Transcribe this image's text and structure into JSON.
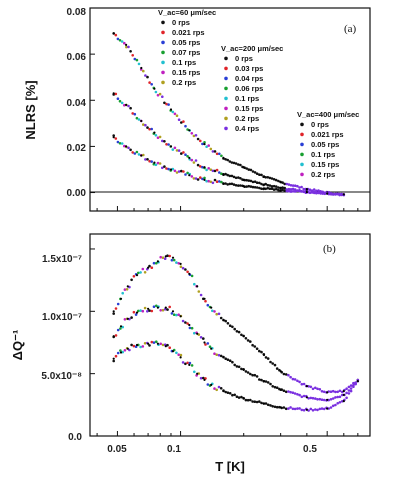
{
  "chart_data": [
    {
      "type": "scatter",
      "panel_label": "(a)",
      "ylabel": "NLRS [%]",
      "yticks": [
        "0.00",
        "0.02",
        "0.04",
        "0.06",
        "0.08"
      ],
      "ylim": [
        -0.008,
        0.08
      ],
      "xlim": [
        0.037,
        0.8
      ],
      "x_scale": "log",
      "legend_groups": [
        {
          "title": "V_ac=60 μm/sec",
          "entries": [
            "0 rps",
            "0.021 rps",
            "0.05 rps",
            "0.07 rps",
            "0.1 rps",
            "0.15 rps",
            "0.2 rps"
          ]
        },
        {
          "title": "V_ac=200 μm/sec",
          "entries": [
            "0 rps",
            "0.03 rps",
            "0.04 rps",
            "0.06 rps",
            "0.1 rps",
            "0.15 rps",
            "0.2 rps",
            "0.4 rps"
          ]
        },
        {
          "title": "V_ac=400 μm/sec",
          "entries": [
            "0 rps",
            "0.021 rps",
            "0.05 rps",
            "0.1 rps",
            "0.15 rps",
            "0.2 rps"
          ]
        }
      ],
      "colors": [
        "#111111",
        "#e0242a",
        "#2a3fd6",
        "#18a030",
        "#22c0d0",
        "#c020c0",
        "#b0a020",
        "#7a30e0"
      ],
      "series": [
        {
          "group": "V_ac=60 μm/sec",
          "x": [
            0.048,
            0.055,
            0.065,
            0.075,
            0.09,
            0.11,
            0.13,
            0.16,
            0.2,
            0.25,
            0.3,
            0.4,
            0.5,
            0.6
          ],
          "y": [
            0.069,
            0.064,
            0.054,
            0.045,
            0.036,
            0.027,
            0.021,
            0.015,
            0.011,
            0.007,
            0.0045,
            0.0015,
            0.0,
            -0.001
          ]
        },
        {
          "group": "V_ac=200 μm/sec",
          "x": [
            0.048,
            0.055,
            0.065,
            0.075,
            0.09,
            0.11,
            0.13,
            0.16,
            0.2,
            0.25,
            0.3,
            0.4,
            0.5,
            0.6
          ],
          "y": [
            0.043,
            0.038,
            0.031,
            0.026,
            0.02,
            0.015,
            0.011,
            0.008,
            0.0055,
            0.0035,
            0.002,
            0.0005,
            -0.0005,
            -0.001
          ]
        },
        {
          "group": "V_ac=400 μm/sec",
          "x": [
            0.048,
            0.055,
            0.065,
            0.075,
            0.09,
            0.11,
            0.13,
            0.16,
            0.2,
            0.25,
            0.3,
            0.4,
            0.5,
            0.6
          ],
          "y": [
            0.024,
            0.02,
            0.016,
            0.013,
            0.01,
            0.0075,
            0.0055,
            0.004,
            0.0028,
            0.0018,
            0.001,
            0.0002,
            -0.0004,
            -0.0008
          ]
        }
      ]
    },
    {
      "type": "scatter",
      "panel_label": "(b)",
      "ylabel": "ΔQ⁻¹",
      "yticks": [
        "0.0",
        "5.0x10⁻⁸",
        "1.0x10⁻⁷",
        "1.5x10⁻⁷"
      ],
      "ylim": [
        0,
        1.62e-07
      ],
      "xlim": [
        0.037,
        0.8
      ],
      "x_scale": "log",
      "xlabel": "T [K]",
      "xticks": [
        "0.05",
        "0.1",
        "0.5"
      ],
      "series": [
        {
          "group": "V_ac=60 μm/sec",
          "x": [
            0.048,
            0.052,
            0.056,
            0.062,
            0.07,
            0.078,
            0.085,
            0.092,
            0.1,
            0.11,
            0.12,
            0.13,
            0.14,
            0.16,
            0.2,
            0.25,
            0.3,
            0.4,
            0.5,
            0.6,
            0.7
          ],
          "y": [
            1e-07,
            1.1e-07,
            1.2e-07,
            1.29e-07,
            1.35e-07,
            1.4e-07,
            1.44e-07,
            1.43e-07,
            1.38e-07,
            1.3e-07,
            1.2e-07,
            1.1e-07,
            1.03e-07,
            9.3e-08,
            8e-08,
            6.5e-08,
            5.2e-08,
            4e-08,
            3.5e-08,
            3.6e-08,
            4.5e-08
          ]
        },
        {
          "group": "V_ac=200 μm/sec",
          "x": [
            0.048,
            0.052,
            0.056,
            0.062,
            0.07,
            0.078,
            0.085,
            0.092,
            0.1,
            0.11,
            0.12,
            0.13,
            0.14,
            0.16,
            0.2,
            0.25,
            0.3,
            0.4,
            0.5,
            0.6,
            0.7
          ],
          "y": [
            8e-08,
            8.8e-08,
            9.4e-08,
            9.9e-08,
            1.02e-07,
            1.03e-07,
            1.03e-07,
            1e-07,
            9.6e-08,
            8.9e-08,
            8.2e-08,
            7.5e-08,
            7e-08,
            6.3e-08,
            5.3e-08,
            4.4e-08,
            3.7e-08,
            3.1e-08,
            2.9e-08,
            3.3e-08,
            4.4e-08
          ]
        },
        {
          "group": "V_ac=400 μm/sec",
          "x": [
            0.048,
            0.052,
            0.056,
            0.062,
            0.07,
            0.078,
            0.085,
            0.092,
            0.1,
            0.11,
            0.12,
            0.13,
            0.14,
            0.16,
            0.2,
            0.25,
            0.3,
            0.4,
            0.5,
            0.6,
            0.7
          ],
          "y": [
            6.2e-08,
            6.7e-08,
            7e-08,
            7.3e-08,
            7.4e-08,
            7.4e-08,
            7.2e-08,
            6.8e-08,
            6.3e-08,
            5.7e-08,
            5e-08,
            4.5e-08,
            4.1e-08,
            3.6e-08,
            3e-08,
            2.6e-08,
            2.3e-08,
            2.1e-08,
            2.2e-08,
            2.8e-08,
            4.4e-08
          ]
        }
      ]
    }
  ]
}
